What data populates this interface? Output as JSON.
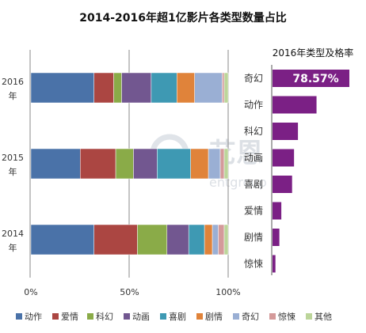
{
  "chart_data": [
    {
      "type": "bar",
      "orientation": "horizontal",
      "stacked": true,
      "percent": true,
      "title": "2014-2016年超1亿影片各类型数量占比",
      "categories": [
        "2016\n年",
        "2015\n年",
        "2014\n年"
      ],
      "x_tick_labels": [
        "0%",
        "50%",
        "100%"
      ],
      "xlim": [
        0,
        100
      ],
      "grid": true,
      "legend_position": "bottom",
      "series": [
        {
          "name": "动作",
          "color": "#4a72a8",
          "values": [
            32,
            25,
            32
          ]
        },
        {
          "name": "爱情",
          "color": "#ab4642",
          "values": [
            10,
            18,
            22
          ]
        },
        {
          "name": "科幻",
          "color": "#8aab48",
          "values": [
            4,
            9,
            15
          ]
        },
        {
          "name": "动画",
          "color": "#725790",
          "values": [
            15,
            12,
            11
          ]
        },
        {
          "name": "喜剧",
          "color": "#3e99b3",
          "values": [
            13,
            17,
            8
          ]
        },
        {
          "name": "剧情",
          "color": "#e0833a",
          "values": [
            9,
            9,
            4
          ]
        },
        {
          "name": "奇幻",
          "color": "#9aafd4",
          "values": [
            14,
            6,
            3
          ]
        },
        {
          "name": "惊悚",
          "color": "#d49a9a",
          "values": [
            1,
            2,
            3
          ]
        },
        {
          "name": "其他",
          "color": "#bcd59a",
          "values": [
            2,
            2,
            2
          ]
        }
      ]
    },
    {
      "type": "bar",
      "orientation": "horizontal",
      "title": "2016年类型及格率",
      "categories": [
        "奇幻",
        "动作",
        "科幻",
        "动画",
        "喜剧",
        "爱情",
        "剧情",
        "惊悚"
      ],
      "values": [
        78.57,
        45,
        26,
        22,
        20,
        9,
        7,
        3
      ],
      "value_labels": [
        "78.57%",
        "",
        "",
        "",
        "",
        "",
        "",
        ""
      ],
      "xlim": [
        0,
        100
      ],
      "color": "#7b2085"
    }
  ],
  "watermark": {
    "main": "艺恩",
    "sub": "entgroup"
  }
}
